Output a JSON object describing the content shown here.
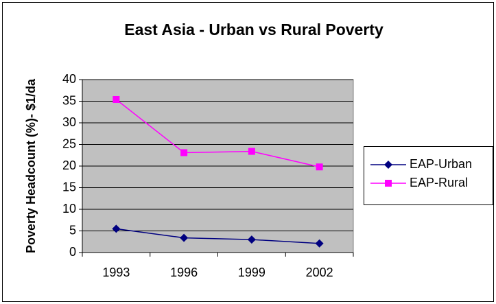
{
  "chart_data": {
    "type": "line",
    "title": "East Asia - Urban vs Rural Poverty",
    "y_label": "Poverty Headcount (%)- $1/da",
    "categories": [
      "1993",
      "1996",
      "1999",
      "2002"
    ],
    "series": [
      {
        "name": "EAP-Urban",
        "color": "#000080",
        "marker": "diamond",
        "values": [
          5.5,
          3.4,
          3.0,
          2.1
        ]
      },
      {
        "name": "EAP-Rural",
        "color": "#ff00ff",
        "marker": "square",
        "values": [
          35.4,
          23.1,
          23.4,
          19.8
        ]
      }
    ],
    "ylim": [
      0,
      40
    ],
    "yticks": [
      0,
      5,
      10,
      15,
      20,
      25,
      30,
      35,
      40
    ],
    "grid": true,
    "legend": "right",
    "plot_background": "#c0c0c0"
  }
}
